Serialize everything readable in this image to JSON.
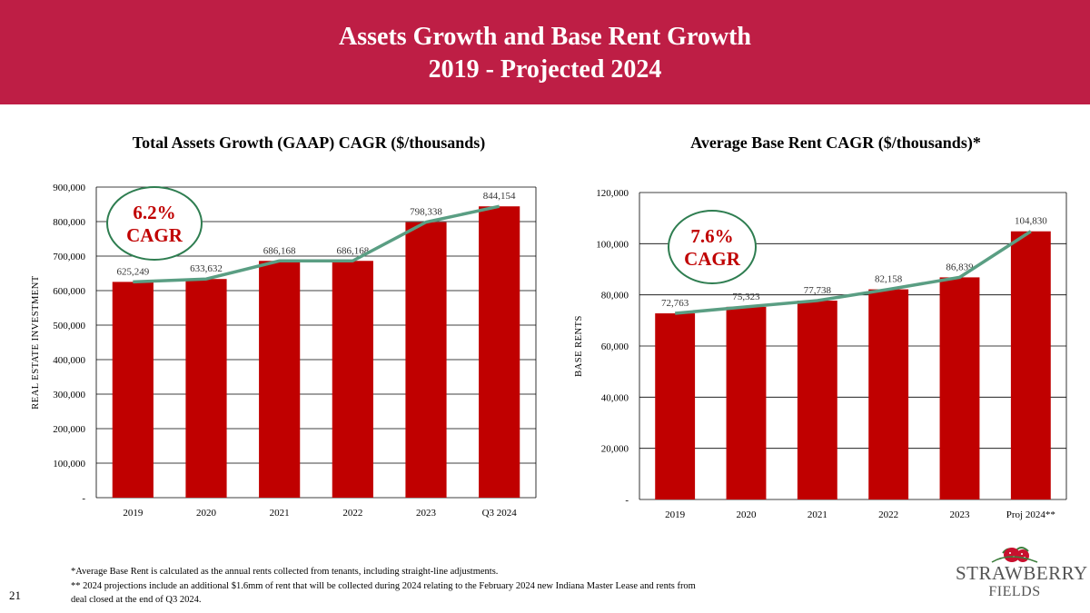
{
  "header": {
    "title_line1": "Assets Growth and Base Rent Growth",
    "title_line2": "2019 - Projected 2024",
    "background_color": "#be1e45"
  },
  "chart_data": [
    {
      "type": "bar",
      "title": "Total Assets Growth (GAAP) CAGR ($/thousands)",
      "ylabel": "REAL ESTATE INVESTMENT",
      "categories": [
        "2019",
        "2020",
        "2021",
        "2022",
        "2023",
        "Q3 2024"
      ],
      "values": [
        625249,
        633632,
        686168,
        686168,
        798338,
        844154
      ],
      "value_labels": [
        "625,249",
        "633,632",
        "686,168",
        "686,168",
        "798,338",
        "844,154"
      ],
      "yticks": [
        "-",
        "100,000",
        "200,000",
        "300,000",
        "400,000",
        "500,000",
        "600,000",
        "700,000",
        "800,000",
        "900,000"
      ],
      "ylim": [
        0,
        900000
      ],
      "grid": true,
      "bar_color": "#c00000",
      "trend_line_color": "#5a9e83",
      "annotation": {
        "value": "6.2%",
        "label": "CAGR",
        "text_color": "#c00000",
        "ring_color": "#2e7d50"
      }
    },
    {
      "type": "bar",
      "title": "Average Base Rent CAGR ($/thousands)*",
      "ylabel": "BASE RENTS",
      "categories": [
        "2019",
        "2020",
        "2021",
        "2022",
        "2023",
        "Proj 2024**"
      ],
      "values": [
        72763,
        75323,
        77738,
        82158,
        86839,
        104830
      ],
      "value_labels": [
        "72,763",
        "75,323",
        "77,738",
        "82,158",
        "86,839",
        "104,830"
      ],
      "yticks": [
        "-",
        "20,000",
        "40,000",
        "60,000",
        "80,000",
        "100,000",
        "120,000"
      ],
      "ylim": [
        0,
        120000
      ],
      "grid": true,
      "bar_color": "#c00000",
      "trend_line_color": "#5a9e83",
      "annotation": {
        "value": "7.6%",
        "label": "CAGR",
        "text_color": "#c00000",
        "ring_color": "#2e7d50"
      }
    }
  ],
  "footnotes": {
    "line1": "*Average Base Rent is calculated as the annual rents collected from tenants, including straight-line adjustments.",
    "line2": "** 2024 projections include an additional $1.6mm of rent that will be collected during 2024 relating to the February 2024 new Indiana Master Lease and rents from",
    "line3": "deal closed at the end of Q3 2024."
  },
  "page_number": "21",
  "logo": {
    "line1": "STRAWBERRY",
    "line2": "FIELDS",
    "icon": "strawberry-icon"
  }
}
